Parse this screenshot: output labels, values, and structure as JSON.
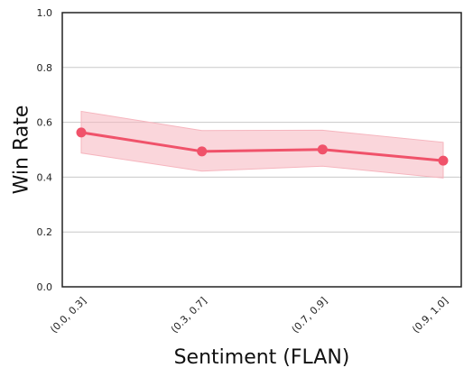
{
  "chart_data": {
    "type": "line",
    "title": "",
    "xlabel": "Sentiment (FLAN)",
    "ylabel": "Win Rate",
    "categories": [
      "(0.0, 0.3]",
      "(0.3, 0.7]",
      "(0.7, 0.9]",
      "(0.9, 1.0]"
    ],
    "series": [
      {
        "values": [
          0.563,
          0.494,
          0.501,
          0.46
        ],
        "lower": [
          0.488,
          0.422,
          0.44,
          0.397
        ],
        "upper": [
          0.64,
          0.57,
          0.571,
          0.527
        ],
        "color": "#f0526a",
        "band_color": "#f6b5be"
      }
    ],
    "ylim": [
      0,
      1.0
    ],
    "yticks": [
      0.0,
      0.2,
      0.4,
      0.6,
      0.8,
      1.0
    ],
    "ytick_labels": [
      "0.0",
      "0.2",
      "0.4",
      "0.6",
      "0.8",
      "1.0"
    ],
    "grid": "horizontal",
    "legend": "none"
  }
}
